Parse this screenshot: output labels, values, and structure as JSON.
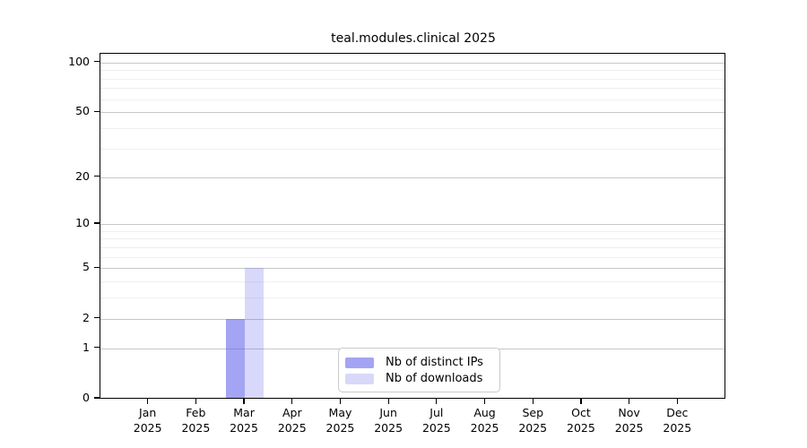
{
  "chart_data": {
    "type": "bar",
    "title": "teal.modules.clinical 2025",
    "x_categories": [
      "Jan",
      "Feb",
      "Mar",
      "Apr",
      "May",
      "Jun",
      "Jul",
      "Aug",
      "Sep",
      "Oct",
      "Nov",
      "Dec"
    ],
    "x_year_label": "2025",
    "series": [
      {
        "name": "Nb of distinct IPs",
        "color": "rgba(90,90,235,0.55)",
        "values": [
          0,
          0,
          2,
          0,
          0,
          0,
          0,
          0,
          0,
          0,
          0,
          0
        ]
      },
      {
        "name": "Nb of downloads",
        "color": "rgba(90,90,235,0.24)",
        "values": [
          0,
          0,
          5,
          0,
          0,
          0,
          0,
          0,
          0,
          0,
          0,
          0
        ]
      }
    ],
    "y_scale": "log10(1+v)",
    "ylim": [
      0,
      113
    ],
    "y_major_ticks": [
      0,
      1,
      2,
      5,
      10,
      20,
      50,
      100
    ],
    "y_minor_gridlines": [
      3,
      4,
      6,
      7,
      8,
      9,
      30,
      40,
      60,
      70,
      80,
      90
    ],
    "grid": true,
    "legend_position": "bottom-center",
    "colors": {
      "bar_distinct_ips": "#a6a6f1",
      "bar_downloads": "#d9d9f7",
      "grid_major": "#c7c7ca",
      "grid_minor": "#efefef",
      "axis": "#000000",
      "background": "#ffffff"
    }
  }
}
